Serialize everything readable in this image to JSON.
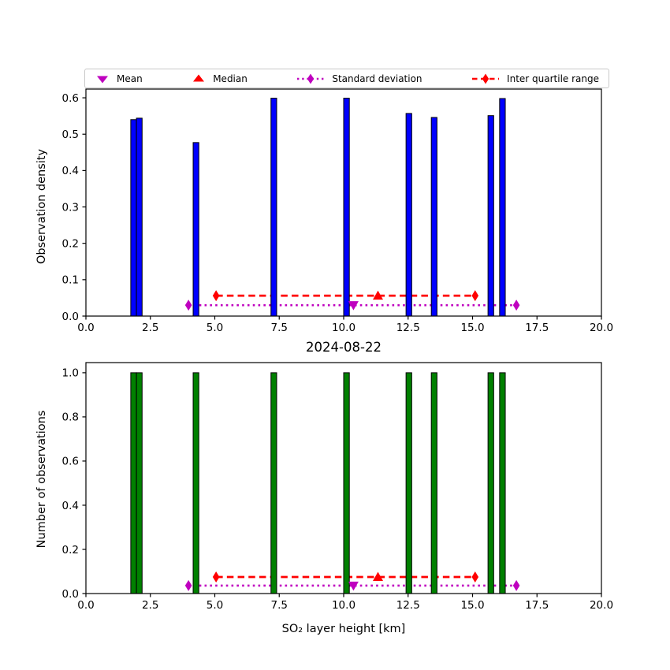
{
  "figure": {
    "title": "2024-08-22",
    "xlabel": "SO₂ layer height [km]",
    "background": "#ffffff"
  },
  "colors": {
    "mean_std": "#bf00bf",
    "median_iqr": "#ff0000",
    "bar_edge": "#000000",
    "axis": "#000000"
  },
  "legend": {
    "items": [
      {
        "label": "Mean",
        "marker": "triangle-down",
        "color": "#bf00bf"
      },
      {
        "label": "Median",
        "marker": "triangle-up",
        "color": "#ff0000"
      },
      {
        "label": "Standard deviation",
        "marker": "thin-diamond-dotted-line",
        "color": "#bf00bf"
      },
      {
        "label": "Inter quartile range",
        "marker": "thin-diamond-dashed-line",
        "color": "#ff0000"
      }
    ]
  },
  "chart_data": [
    {
      "type": "bar",
      "id": "observation-density",
      "ylabel": "Observation density",
      "xlim": [
        0,
        20
      ],
      "ylim": [
        0,
        0.624
      ],
      "x_ticks": [
        0,
        2.5,
        5,
        7.5,
        10,
        12.5,
        15,
        17.5,
        20
      ],
      "x_tick_labels": [
        "0.0",
        "2.5",
        "5.0",
        "7.5",
        "10.0",
        "12.5",
        "15.0",
        "17.5",
        "20.0"
      ],
      "y_ticks": [
        0,
        0.1,
        0.2,
        0.3,
        0.4,
        0.5,
        0.6
      ],
      "y_tick_labels": [
        "0.0",
        "0.1",
        "0.2",
        "0.3",
        "0.4",
        "0.5",
        "0.6"
      ],
      "grid": false,
      "bar_color": "#0000ff",
      "bars": [
        {
          "x0": 1.74,
          "x1": 1.96,
          "height": 0.54
        },
        {
          "x0": 1.96,
          "x1": 2.18,
          "height": 0.544
        },
        {
          "x0": 4.16,
          "x1": 4.38,
          "height": 0.477
        },
        {
          "x0": 7.18,
          "x1": 7.4,
          "height": 0.599
        },
        {
          "x0": 10.0,
          "x1": 10.22,
          "height": 0.599
        },
        {
          "x0": 12.42,
          "x1": 12.64,
          "height": 0.557
        },
        {
          "x0": 13.4,
          "x1": 13.62,
          "height": 0.546
        },
        {
          "x0": 15.6,
          "x1": 15.82,
          "height": 0.551
        },
        {
          "x0": 16.05,
          "x1": 16.27,
          "height": 0.598
        }
      ],
      "overlays": {
        "mean": {
          "x": 10.38,
          "y": 0.03
        },
        "median": {
          "x": 11.33,
          "y": 0.056
        },
        "std_dev_range": {
          "x0": 3.98,
          "x1": 16.7,
          "y": 0.03
        },
        "iqr_range": {
          "x0": 5.05,
          "x1": 15.1,
          "y": 0.056
        }
      }
    },
    {
      "type": "bar",
      "id": "number-of-observations",
      "ylabel": "Number of observations",
      "xlabel": "SO₂ layer height [km]",
      "xlim": [
        0,
        20
      ],
      "ylim": [
        0,
        1.046
      ],
      "x_ticks": [
        0,
        2.5,
        5,
        7.5,
        10,
        12.5,
        15,
        17.5,
        20
      ],
      "x_tick_labels": [
        "0.0",
        "2.5",
        "5.0",
        "7.5",
        "10.0",
        "12.5",
        "15.0",
        "17.5",
        "20.0"
      ],
      "y_ticks": [
        0,
        0.2,
        0.4,
        0.6,
        0.8,
        1.0
      ],
      "y_tick_labels": [
        "0.0",
        "0.2",
        "0.4",
        "0.6",
        "0.8",
        "1.0"
      ],
      "grid": false,
      "bar_color": "#008000",
      "bars": [
        {
          "x0": 1.74,
          "x1": 1.96,
          "height": 1.0
        },
        {
          "x0": 1.96,
          "x1": 2.18,
          "height": 1.0
        },
        {
          "x0": 4.16,
          "x1": 4.38,
          "height": 1.0
        },
        {
          "x0": 7.18,
          "x1": 7.4,
          "height": 1.0
        },
        {
          "x0": 10.0,
          "x1": 10.22,
          "height": 1.0
        },
        {
          "x0": 12.42,
          "x1": 12.64,
          "height": 1.0
        },
        {
          "x0": 13.4,
          "x1": 13.62,
          "height": 1.0
        },
        {
          "x0": 15.6,
          "x1": 15.82,
          "height": 1.0
        },
        {
          "x0": 16.05,
          "x1": 16.27,
          "height": 1.0
        }
      ],
      "overlays": {
        "mean": {
          "x": 10.38,
          "y": 0.036
        },
        "median": {
          "x": 11.33,
          "y": 0.075
        },
        "std_dev_range": {
          "x0": 3.98,
          "x1": 16.7,
          "y": 0.036
        },
        "iqr_range": {
          "x0": 5.05,
          "x1": 15.1,
          "y": 0.075
        }
      }
    }
  ]
}
